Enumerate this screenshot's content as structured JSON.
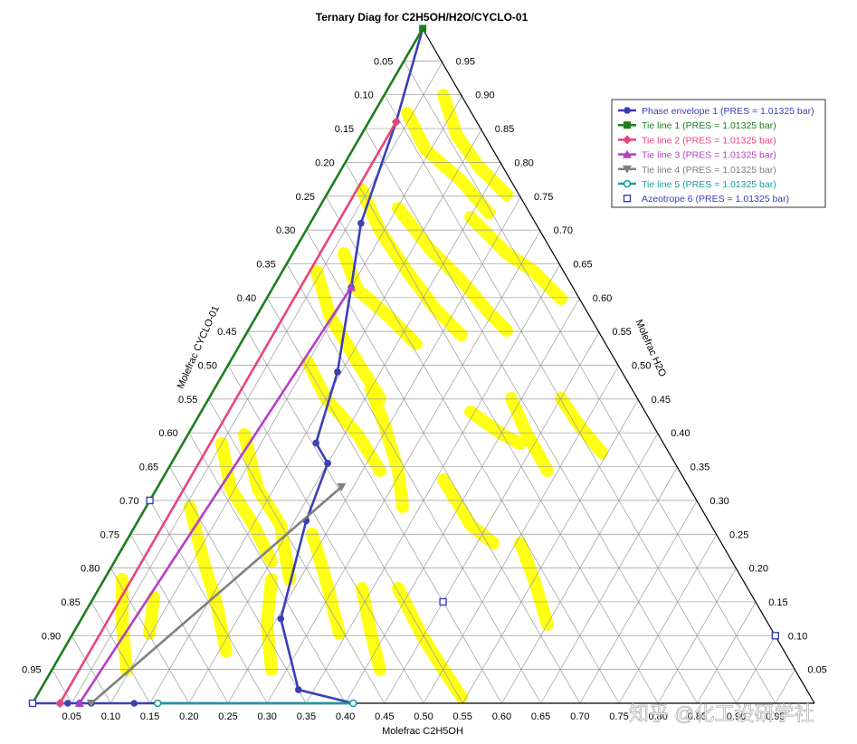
{
  "chart_data": {
    "type": "ternary",
    "title": "Ternary Diag for C2H5OH/H2O/CYCLO-01",
    "axes": {
      "bottom": {
        "label": "Molefrac C2H5OH",
        "ticks": [
          "0.05",
          "0.10",
          "0.15",
          "0.20",
          "0.25",
          "0.30",
          "0.35",
          "0.40",
          "0.45",
          "0.50",
          "0.55",
          "0.60",
          "0.65",
          "0.70",
          "0.75",
          "0.80",
          "0.85",
          "0.90",
          "0.95"
        ]
      },
      "left": {
        "label": "Molefrac CYCLO-01",
        "ticks": [
          "0.05",
          "0.10",
          "0.15",
          "0.20",
          "0.25",
          "0.30",
          "0.35",
          "0.40",
          "0.45",
          "0.50",
          "0.55",
          "0.60",
          "0.65",
          "0.70",
          "0.75",
          "0.80",
          "0.85",
          "0.90",
          "0.95"
        ]
      },
      "right": {
        "label": "Molefrac H2O",
        "ticks": [
          "0.05",
          "0.10",
          "0.15",
          "0.20",
          "0.25",
          "0.30",
          "0.35",
          "0.40",
          "0.45",
          "0.50",
          "0.55",
          "0.60",
          "0.65",
          "0.70",
          "0.75",
          "0.80",
          "0.85",
          "0.90",
          "0.95"
        ]
      }
    },
    "vertices": {
      "top": "H2O",
      "bottom_left": "CYCLO-01",
      "bottom_right": "C2H5OH"
    },
    "coordinates_note": "points given as [x_C2H5OH, x_H2O]",
    "legend": [
      {
        "name": "Phase envelope 1 (PRES = 1.01325  bar)",
        "color": "#3a3fb5",
        "marker": "circle"
      },
      {
        "name": "Tie line 1 (PRES = 1.01325  bar)",
        "color": "#1e7d1e",
        "marker": "square"
      },
      {
        "name": "Tie line 2 (PRES = 1.01325  bar)",
        "color": "#e8457a",
        "marker": "diamond"
      },
      {
        "name": "Tie line 3 (PRES = 1.01325  bar)",
        "color": "#b43fc4",
        "marker": "triangle"
      },
      {
        "name": "Tie line 4 (PRES = 1.01325  bar)",
        "color": "#808080",
        "marker": "triangle-down"
      },
      {
        "name": "Tie line 5 (PRES = 1.01325  bar)",
        "color": "#1a9b9b",
        "marker": "open-circle"
      },
      {
        "name": "Azeotrope 6 (PRES = 1.01325  bar)",
        "color": "#3a3fb5",
        "marker": "open-square"
      }
    ],
    "series": [
      {
        "name": "Phase envelope 1 (PRES = 1.01325  bar)",
        "points": [
          [
            0.0,
            0.998
          ],
          [
            0.035,
            0.86
          ],
          [
            0.065,
            0.71
          ],
          [
            0.1,
            0.615
          ],
          [
            0.145,
            0.49
          ],
          [
            0.17,
            0.385
          ],
          [
            0.2,
            0.355
          ],
          [
            0.215,
            0.27
          ],
          [
            0.255,
            0.125
          ],
          [
            0.33,
            0.02
          ],
          [
            0.41,
            0.0
          ],
          [
            0.16,
            0.0
          ],
          [
            0.13,
            0.0
          ],
          [
            0.075,
            0.0
          ],
          [
            0.06,
            0.0
          ],
          [
            0.045,
            0.0
          ],
          [
            0.035,
            0.0
          ],
          [
            0.0,
            0.0
          ]
        ]
      },
      {
        "name": "Tie line 1 (PRES = 1.01325  bar)",
        "points": [
          [
            0.0,
            0.998
          ],
          [
            0.0,
            0.0
          ]
        ]
      },
      {
        "name": "Tie line 2 (PRES = 1.01325  bar)",
        "points": [
          [
            0.035,
            0.86
          ],
          [
            0.035,
            0.0
          ]
        ]
      },
      {
        "name": "Tie line 3 (PRES = 1.01325  bar)",
        "points": [
          [
            0.1,
            0.615
          ],
          [
            0.06,
            0.0
          ]
        ]
      },
      {
        "name": "Tie line 4 (PRES = 1.01325  bar)",
        "points": [
          [
            0.235,
            0.32
          ],
          [
            0.075,
            0.0
          ]
        ]
      },
      {
        "name": "Tie line 5 (PRES = 1.01325  bar)",
        "points": [
          [
            0.41,
            0.0
          ],
          [
            0.16,
            0.0
          ]
        ]
      },
      {
        "name": "Azeotrope 6 (PRES = 1.01325  bar)",
        "points": [
          [
            0.0,
            0.3
          ],
          [
            0.45,
            0.15
          ],
          [
            0.0,
            0.0
          ],
          [
            0.9,
            0.1
          ]
        ]
      }
    ],
    "grid": true,
    "legend_position": "top-right"
  },
  "watermark": "知乎 @化工设研学社",
  "colors": {
    "highlight": "#ffff00"
  }
}
